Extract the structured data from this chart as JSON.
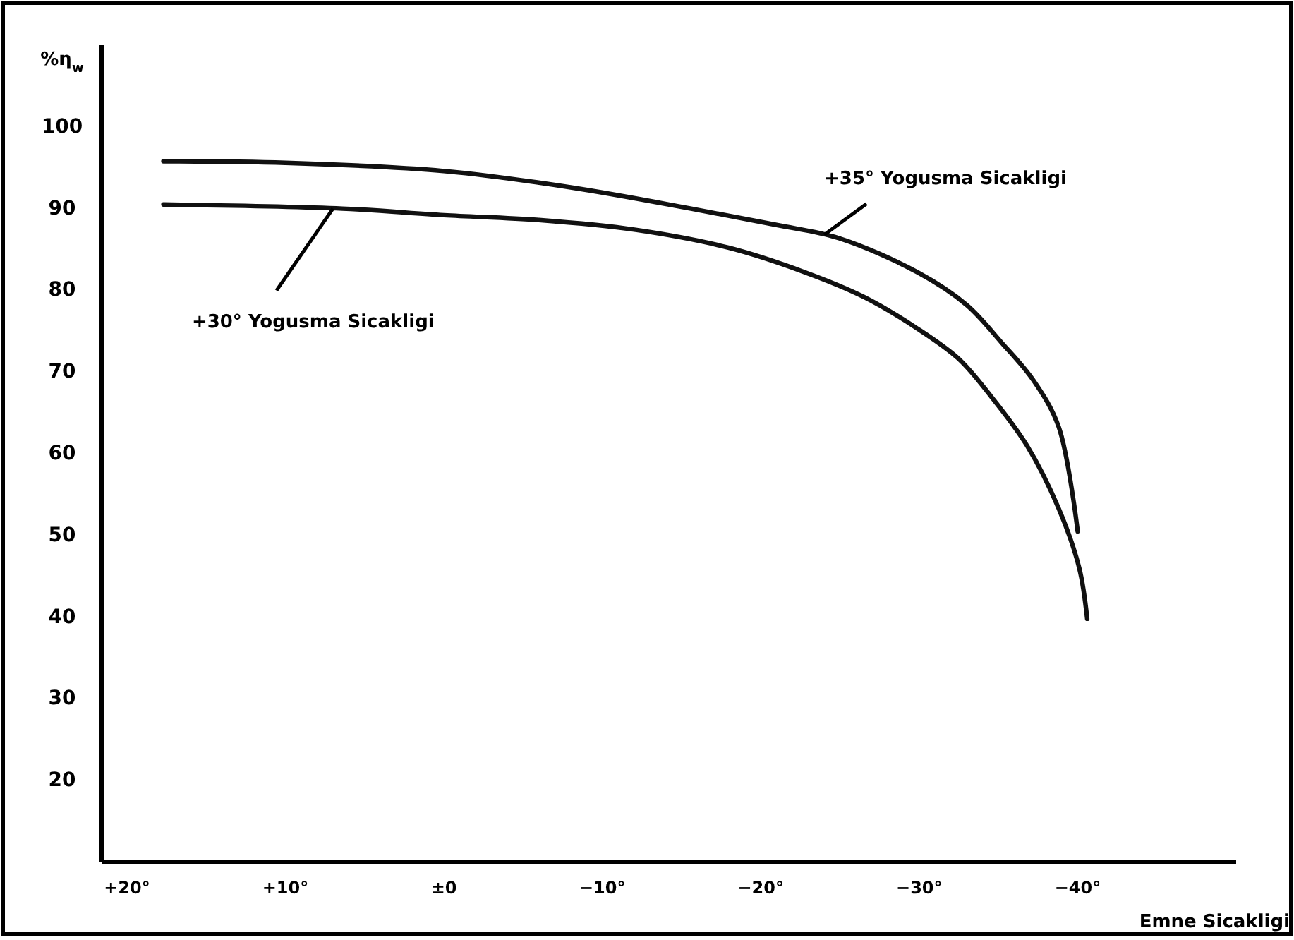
{
  "chart_data": {
    "type": "line",
    "ylabel": "%η$_{w}$",
    "xlabel": "Emne Sicakligi",
    "xlim": [
      21.6,
      -50
    ],
    "ylim": [
      10,
      110
    ],
    "xticks": [
      {
        "value": 20,
        "label": "+20°"
      },
      {
        "value": 10,
        "label": "+10°"
      },
      {
        "value": 0,
        "label": "±0"
      },
      {
        "value": -10,
        "label": "−10°"
      },
      {
        "value": -20,
        "label": "−20°"
      },
      {
        "value": -30,
        "label": "−30°"
      },
      {
        "value": -40,
        "label": "−40°"
      }
    ],
    "yticks": [
      20,
      30,
      40,
      50,
      60,
      70,
      80,
      90,
      100
    ],
    "grid": false,
    "marker": "none",
    "line_style": "solid",
    "series": [
      {
        "color": "#111111",
        "x": [
          17.7,
          10,
          0,
          -8,
          -15.6,
          -21,
          -24.9,
          -29.9,
          -33,
          -35.2,
          -37.2,
          -38.8,
          -40
        ],
        "values": [
          95.8,
          95.6,
          94.6,
          92.6,
          90.0,
          88.0,
          86.4,
          82.2,
          78.2,
          73.6,
          69.0,
          63.3,
          50.5
        ]
      },
      {
        "color": "#111111",
        "x": [
          17.7,
          6.4,
          0,
          -6,
          -12.1,
          -18,
          -22.8,
          -26.5,
          -29.9,
          -32.5,
          -34.5,
          -36.8,
          -38.8,
          -40.1,
          -40.6
        ],
        "values": [
          90.5,
          90.0,
          89.2,
          88.6,
          87.4,
          85.2,
          82.2,
          79.2,
          75.3,
          71.6,
          67.1,
          61.0,
          53.3,
          46.0,
          39.8
        ]
      }
    ],
    "annotations": [
      {
        "text": "+35° Yogusma Sicakligi",
        "x": -24,
        "y": 86.8
      },
      {
        "text": "+30° Yogusma Sicakligi",
        "x": 7,
        "y": 90
      }
    ]
  }
}
